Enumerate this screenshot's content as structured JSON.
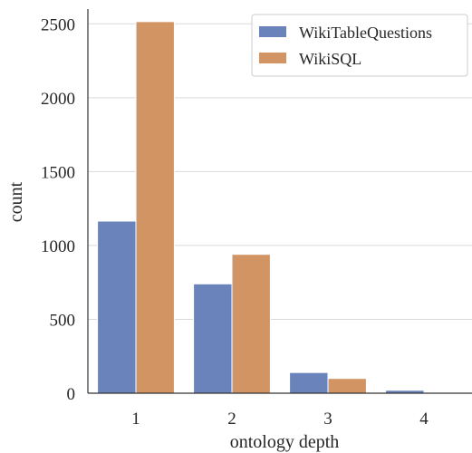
{
  "chart_data": {
    "type": "bar",
    "xlabel": "ontology depth",
    "ylabel": "count",
    "categories": [
      "1",
      "2",
      "3",
      "4"
    ],
    "series": [
      {
        "name": "WikiTableQuestions",
        "color": "#6a84bb",
        "values": [
          1165,
          740,
          140,
          20
        ]
      },
      {
        "name": "WikiSQL",
        "color": "#d39464",
        "values": [
          2515,
          940,
          100,
          0
        ]
      }
    ],
    "ylim": [
      0,
      2600
    ],
    "yticks": [
      0,
      500,
      1000,
      1500,
      2000,
      2500
    ],
    "grid": "y",
    "legend": "top-right"
  }
}
